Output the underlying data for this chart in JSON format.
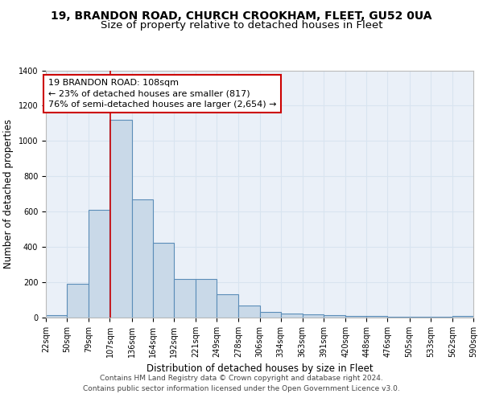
{
  "title_line1": "19, BRANDON ROAD, CHURCH CROOKHAM, FLEET, GU52 0UA",
  "title_line2": "Size of property relative to detached houses in Fleet",
  "xlabel": "Distribution of detached houses by size in Fleet",
  "ylabel": "Number of detached properties",
  "bar_left_edges": [
    22,
    50,
    79,
    107,
    136,
    164,
    192,
    221,
    249,
    278,
    306,
    334,
    363,
    391,
    420,
    448,
    476,
    505,
    533,
    562
  ],
  "bar_widths": [
    28,
    29,
    28,
    29,
    28,
    28,
    29,
    28,
    29,
    28,
    28,
    29,
    28,
    29,
    28,
    28,
    29,
    28,
    29,
    28
  ],
  "bar_heights": [
    15,
    190,
    610,
    1120,
    670,
    425,
    220,
    220,
    130,
    70,
    30,
    25,
    20,
    15,
    10,
    10,
    5,
    3,
    3,
    10
  ],
  "bar_color": "#c9d9e8",
  "bar_edge_color": "#5b8db8",
  "bar_edge_width": 0.8,
  "xlim": [
    22,
    590
  ],
  "ylim": [
    0,
    1400
  ],
  "yticks": [
    0,
    200,
    400,
    600,
    800,
    1000,
    1200,
    1400
  ],
  "xtick_labels": [
    "22sqm",
    "50sqm",
    "79sqm",
    "107sqm",
    "136sqm",
    "164sqm",
    "192sqm",
    "221sqm",
    "249sqm",
    "278sqm",
    "306sqm",
    "334sqm",
    "363sqm",
    "391sqm",
    "420sqm",
    "448sqm",
    "476sqm",
    "505sqm",
    "533sqm",
    "562sqm",
    "590sqm"
  ],
  "xtick_positions": [
    22,
    50,
    79,
    107,
    136,
    164,
    192,
    221,
    249,
    278,
    306,
    334,
    363,
    391,
    420,
    448,
    476,
    505,
    533,
    562,
    590
  ],
  "red_line_x": 108,
  "red_line_color": "#cc0000",
  "annotation_text": "19 BRANDON ROAD: 108sqm\n← 23% of detached houses are smaller (817)\n76% of semi-detached houses are larger (2,654) →",
  "annotation_box_color": "#ffffff",
  "annotation_box_edge_color": "#cc0000",
  "background_color": "#eaf0f8",
  "grid_color": "#d8e4f0",
  "footer_text": "Contains HM Land Registry data © Crown copyright and database right 2024.\nContains public sector information licensed under the Open Government Licence v3.0.",
  "title_fontsize": 10,
  "subtitle_fontsize": 9.5,
  "axis_label_fontsize": 8.5,
  "tick_fontsize": 7,
  "annotation_fontsize": 8,
  "footer_fontsize": 6.5
}
